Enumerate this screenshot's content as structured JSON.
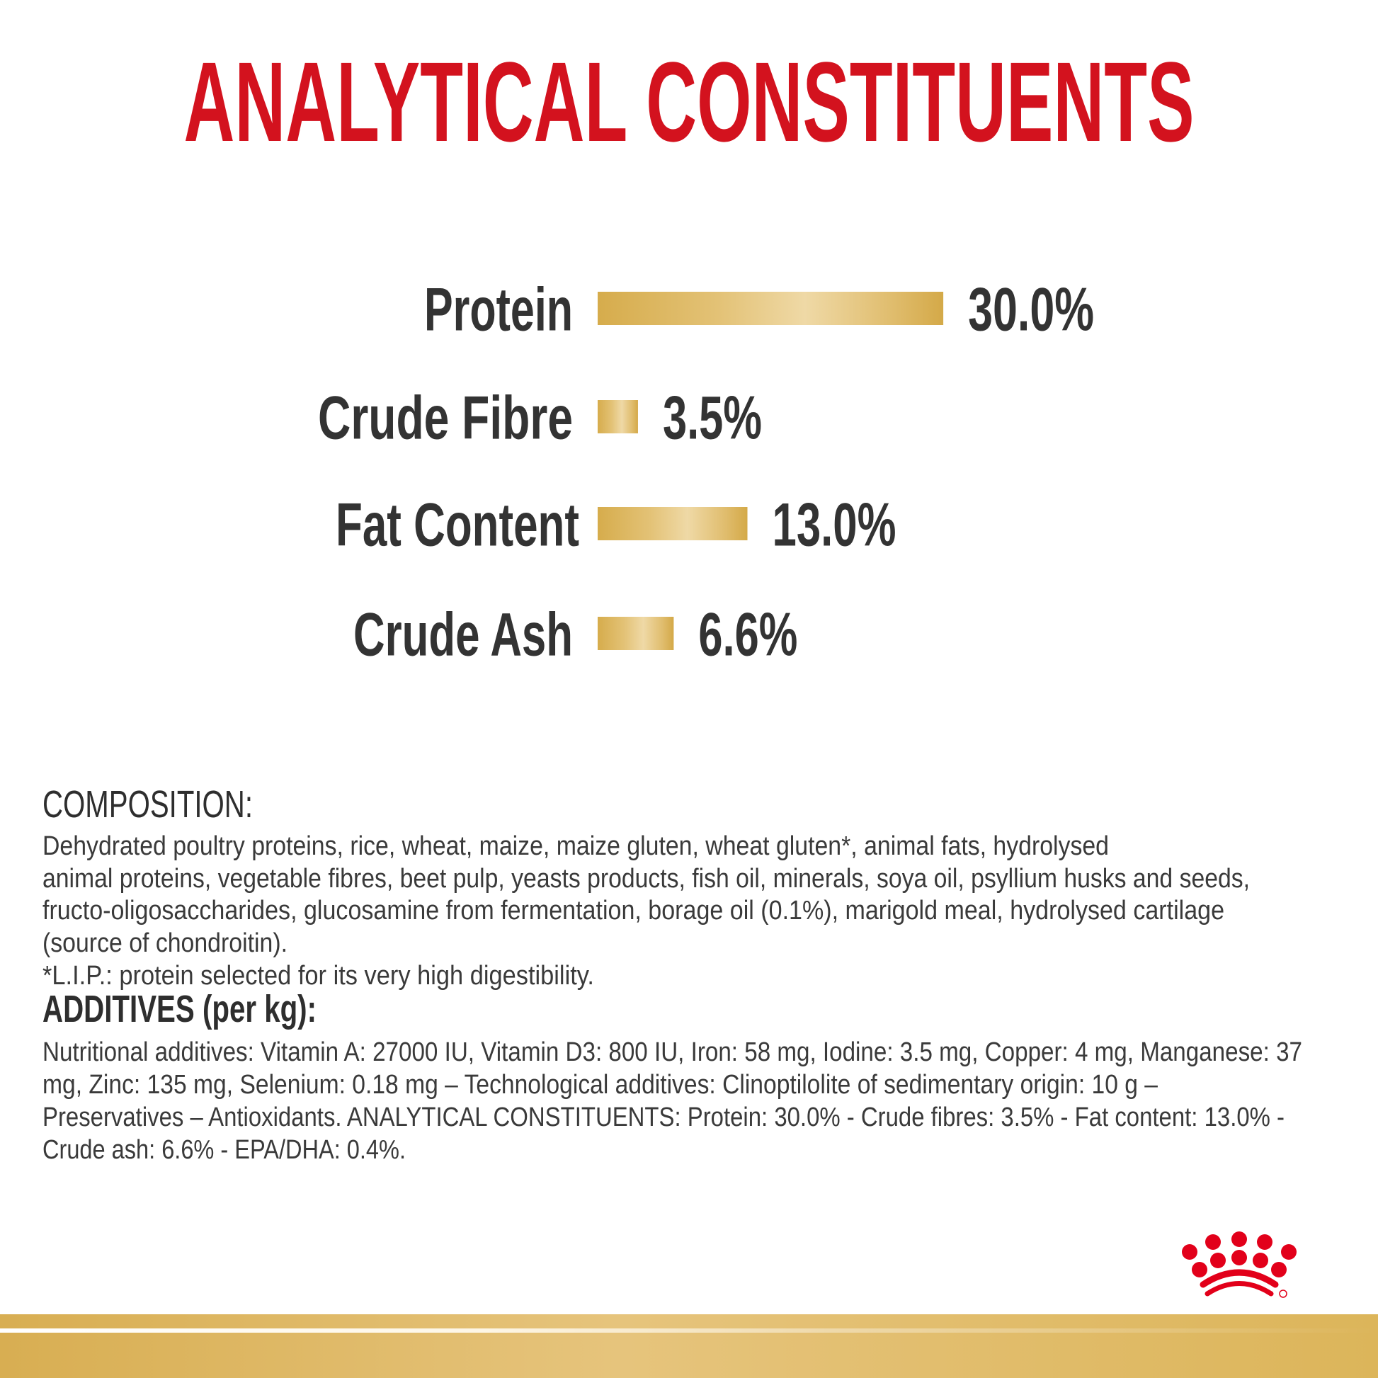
{
  "title": "ANALYTICAL CONSTITUENTS",
  "chart_data": {
    "type": "bar",
    "orientation": "horizontal",
    "categories": [
      "Protein",
      "Crude Fibre",
      "Fat Content",
      "Crude Ash"
    ],
    "values": [
      30.0,
      3.5,
      13.0,
      6.6
    ],
    "value_labels": [
      "30.0%",
      "3.5%",
      "13.0%",
      "6.6%"
    ],
    "unit": "%",
    "grid": false,
    "bar_color": "#dbb55e"
  },
  "composition": {
    "heading": "COMPOSITION:",
    "lines": [
      "Dehydrated poultry proteins, rice, wheat, maize, maize gluten, wheat gluten*, animal fats, hydrolysed",
      "animal proteins, vegetable fibres, beet pulp, yeasts products, fish oil, minerals, soya oil, psyllium husks and seeds,",
      "fructo-oligosaccharides, glucosamine from fermentation, borage oil (0.1%), marigold meal, hydrolysed cartilage",
      "(source of chondroitin).",
      "*L.I.P.: protein selected for its very high digestibility."
    ]
  },
  "additives": {
    "heading": "ADDITIVES (per kg):",
    "lines": [
      "Nutritional additives: Vitamin A: 27000 IU, Vitamin D3: 800 IU, Iron: 58 mg, Iodine: 3.5 mg, Copper: 4 mg, Manganese: 37",
      "mg, Zinc: 135 mg, Selenium: 0.18 mg – Technological additives: Clinoptilolite of sedimentary origin: 10 g –",
      "Preservatives – Antioxidants. ANALYTICAL CONSTITUENTS: Protein: 30.0% - Crude fibres: 3.5% - Fat content: 13.0% -",
      "Crude ash: 6.6% - EPA/DHA: 0.4%."
    ]
  },
  "logo": {
    "name": "royal-canin-crown-logo",
    "color": "#e2001a"
  },
  "colors": {
    "title": "#d3121e",
    "text": "#333333",
    "gold": "#dbb55e"
  }
}
